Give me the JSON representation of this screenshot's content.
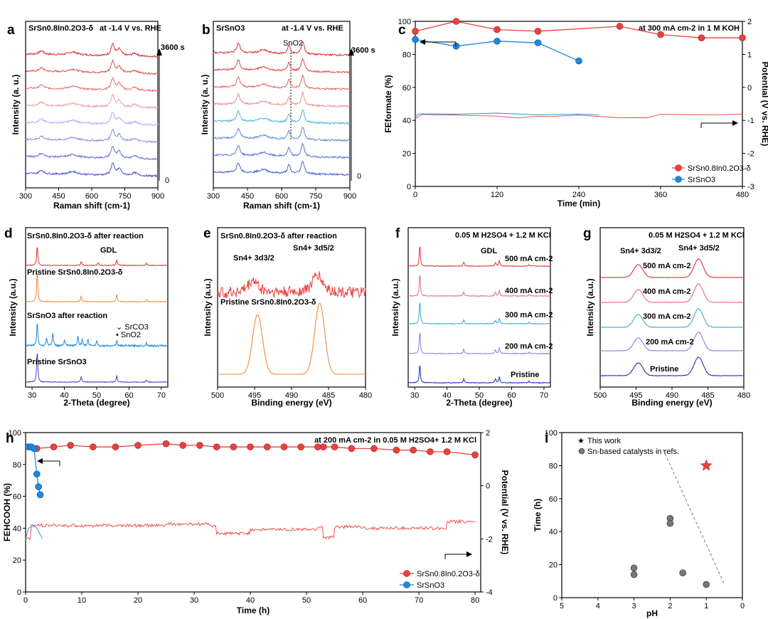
{
  "panels": {
    "a": {
      "label": "a",
      "sample": "SrSn0.8In0.2O3-δ",
      "condition": "at -1.4 V vs. RHE",
      "time_end": "3600 s",
      "time_start": "0",
      "xlabel": "Raman shift (cm-1)",
      "ylabel": "Intensity (a. u.)",
      "xticks": [
        "300",
        "450",
        "600",
        "750",
        "900"
      ]
    },
    "b": {
      "label": "b",
      "sample": "SrSnO3",
      "condition": "at -1.4 V vs. RHE",
      "peak_label": "SnO2",
      "time_end": "3600 s",
      "time_start": "0",
      "xlabel": "Raman shift (cm-1)",
      "ylabel": "Intensity (a. u.)",
      "xticks": [
        "300",
        "450",
        "600",
        "750",
        "900"
      ]
    },
    "c": {
      "label": "c",
      "condition": "at 300 mA cm-2 in 1 M KOH",
      "xlabel": "Time (min)",
      "ylabel_left": "FEformate (%)",
      "ylabel_right": "Potential (V vs. RHE)",
      "xticks": [
        "0",
        "120",
        "240",
        "360",
        "480"
      ],
      "yticks_left": [
        "0",
        "20",
        "40",
        "60",
        "80",
        "100"
      ],
      "yticks_right": [
        "-3",
        "-2",
        "-1",
        "0",
        "1",
        "2"
      ],
      "legend": [
        "SrSn0.8In0.2O3-δ",
        "SrSnO3"
      ]
    },
    "d": {
      "label": "d",
      "traces": [
        "SrSn0.8In0.2O3-δ after reaction",
        "Pristine SrSn0.8In0.2O3-δ",
        "SrSnO3 after reaction",
        "Pristine SrSnO3"
      ],
      "gdl": "GDL",
      "markers": [
        "SrCO3",
        "SnO2"
      ],
      "xlabel": "2-Theta (degree)",
      "ylabel": "Intensity (a.u.)",
      "xticks": [
        "30",
        "40",
        "50",
        "60",
        "70"
      ]
    },
    "e": {
      "label": "e",
      "traces": [
        "SrSn0.8In0.2O3-δ after reaction",
        "Pristine SrSn0.8In0.2O3-δ"
      ],
      "peaks": [
        "Sn4+ 3d3/2",
        "Sn4+ 3d5/2"
      ],
      "xlabel": "Binding energy (eV)",
      "ylabel": "Intensity (a.u.)",
      "xticks": [
        "500",
        "495",
        "490",
        "485",
        "480"
      ]
    },
    "f": {
      "label": "f",
      "condition": "0.05 M H2SO4 + 1.2 M KCl",
      "gdl": "GDL",
      "traces": [
        "500 mA cm-2",
        "400 mA cm-2",
        "300 mA cm-2",
        "200 mA cm-2",
        "Pristine"
      ],
      "xlabel": "2-Theta (degree)",
      "ylabel": "Intensity (a.u.)",
      "xticks": [
        "30",
        "40",
        "50",
        "60",
        "70"
      ]
    },
    "g": {
      "label": "g",
      "condition": "0.05 M H2SO4 + 1.2 M KCl",
      "peaks": [
        "Sn4+ 3d3/2",
        "Sn4+ 3d5/2"
      ],
      "traces": [
        "500 mA cm-2",
        "400 mA cm-2",
        "300 mA cm-2",
        "200 mA cm-2",
        "Pristine"
      ],
      "xlabel": "Binding energy (eV)",
      "ylabel": "Intensity (a.u.)",
      "xticks": [
        "500",
        "495",
        "490",
        "485",
        "480"
      ]
    },
    "h": {
      "label": "h",
      "condition": "at 200 mA cm-2 in 0.05 M H2SO4+ 1.2 M KCl",
      "xlabel": "Time (h)",
      "ylabel_left": "FEHCOOH (%)",
      "ylabel_right": "Potential (V vs. RHE)",
      "xticks": [
        "0",
        "10",
        "20",
        "30",
        "40",
        "50",
        "60",
        "70",
        "80"
      ],
      "yticks_left": [
        "0",
        "20",
        "40",
        "60",
        "80",
        "100"
      ],
      "yticks_right": [
        "-4",
        "-2",
        "0",
        "2"
      ],
      "legend": [
        "SrSn0.8In0.2O3-δ",
        "SrSnO3"
      ]
    },
    "i": {
      "label": "i",
      "xlabel": "pH",
      "ylabel": "Time (h)",
      "xticks": [
        "5",
        "4",
        "3",
        "2",
        "1",
        "0"
      ],
      "yticks": [
        "0",
        "20",
        "40",
        "60",
        "80",
        "100"
      ],
      "legend": [
        "This work",
        "Sn-based catalysts in refs."
      ]
    }
  },
  "colors": {
    "red": "#e8423f",
    "blue": "#1f88e0",
    "orange": "#f08a3a",
    "raman_a": [
      "#d83030",
      "#e05050",
      "#e87070",
      "#f0a0a0",
      "#a8b4ec",
      "#8490e0",
      "#6672d8",
      "#4a56cc"
    ],
    "raman_b": [
      "#d83030",
      "#e04848",
      "#e86464",
      "#f08a8a",
      "#52b8d8",
      "#5090d8",
      "#5578d8",
      "#4a60d0"
    ],
    "xps_g": [
      "#e03030",
      "#e56a7a",
      "#38a8cc",
      "#8e7cd8",
      "#1c2ac0"
    ],
    "xrd_f": [
      "#e03030",
      "#e56a7a",
      "#38a8cc",
      "#8e7cd8",
      "#1c2ac0"
    ],
    "xrd_d": [
      "#e03030",
      "#f08a3a",
      "#1f88e0",
      "#5a3ab8"
    ]
  },
  "chart_data": [
    {
      "panel": "c",
      "type": "line",
      "title": "at 300 mA cm-2 in 1 M KOH",
      "xlabel": "Time (min)",
      "ylabel": "FEformate (%)",
      "y2label": "Potential (V vs. RHE)",
      "xlim": [
        0,
        480
      ],
      "ylim": [
        0,
        100
      ],
      "y2lim": [
        -3,
        2
      ],
      "series": [
        {
          "name": "SrSn0.8In0.2O3-δ",
          "axis": "left",
          "x": [
            0,
            60,
            120,
            180,
            300,
            360,
            420,
            480
          ],
          "values": [
            94,
            100,
            95,
            94,
            97,
            92,
            90,
            90
          ]
        },
        {
          "name": "SrSnO3",
          "axis": "left",
          "x": [
            0,
            60,
            120,
            180,
            240
          ],
          "values": [
            89,
            85,
            88,
            87,
            76
          ]
        },
        {
          "axis": "right",
          "x": [
            0,
            10,
            60,
            120,
            150,
            170,
            200,
            240,
            300,
            340,
            360,
            400,
            440,
            480
          ],
          "values": [
            -0.95,
            -0.82,
            -0.83,
            -0.87,
            -0.92,
            -0.88,
            -0.87,
            -0.85,
            -0.92,
            -0.92,
            -0.83,
            -0.82,
            -0.82,
            -0.8
          ]
        },
        {
          "axis": "right",
          "x": [
            0,
            5,
            60,
            120,
            180,
            240,
            270
          ],
          "values": [
            -0.9,
            -0.8,
            -0.82,
            -0.78,
            -0.82,
            -0.82,
            -0.84
          ]
        }
      ]
    },
    {
      "panel": "h",
      "type": "line",
      "title": "at 200 mA cm-2 in 0.05 M H2SO4+ 1.2 M KCl",
      "xlabel": "Time (h)",
      "ylabel": "FEHCOOH (%)",
      "y2label": "Potential (V vs. RHE)",
      "xlim": [
        0,
        81
      ],
      "ylim": [
        0,
        100
      ],
      "y2lim": [
        -4,
        2
      ],
      "series": [
        {
          "name": "SrSn0.8In0.2O3-δ",
          "axis": "left",
          "x": [
            0.5,
            2,
            5,
            8,
            12,
            16,
            20,
            25,
            28,
            31,
            34,
            37,
            40,
            43,
            46,
            49,
            52,
            53,
            55,
            58,
            62,
            66,
            69,
            72,
            75,
            80
          ],
          "values": [
            91,
            90,
            91,
            92,
            91,
            91,
            92,
            93,
            92,
            92,
            91,
            91,
            91,
            91,
            91,
            91,
            91,
            91,
            91,
            90,
            90,
            89,
            89,
            88,
            88,
            86
          ]
        },
        {
          "name": "SrSnO3",
          "axis": "left",
          "x": [
            0.5,
            1,
            1.5,
            2,
            2.3,
            2.6
          ],
          "values": [
            91,
            91,
            90,
            74,
            66,
            61
          ]
        },
        {
          "axis": "right",
          "x": [
            0,
            1,
            3,
            8,
            15,
            20,
            25,
            30,
            33,
            34,
            40,
            47,
            52,
            53,
            55,
            60,
            70,
            74,
            75,
            80
          ],
          "values": [
            -2.0,
            -1.5,
            -1.5,
            -1.5,
            -1.5,
            -1.5,
            -1.45,
            -1.45,
            -1.5,
            -1.8,
            -1.65,
            -1.65,
            -1.55,
            -1.95,
            -1.55,
            -1.6,
            -1.6,
            -1.6,
            -1.35,
            -1.35
          ]
        },
        {
          "axis": "right",
          "x": [
            0,
            0.5,
            1,
            1.5,
            2,
            2.5,
            3
          ],
          "values": [
            -2.0,
            -1.6,
            -1.55,
            -1.5,
            -1.6,
            -1.8,
            -2.0
          ]
        }
      ]
    },
    {
      "panel": "i",
      "type": "scatter",
      "xlabel": "pH",
      "ylabel": "Time (h)",
      "xlim": [
        5,
        0
      ],
      "ylim": [
        0,
        100
      ],
      "series": [
        {
          "name": "This work",
          "x": [
            1
          ],
          "values": [
            80
          ]
        },
        {
          "name": "Sn-based catalysts in refs.",
          "x": [
            3,
            3,
            2,
            2,
            1.65,
            1
          ],
          "values": [
            18,
            14,
            48,
            45,
            15,
            8
          ]
        }
      ]
    }
  ]
}
